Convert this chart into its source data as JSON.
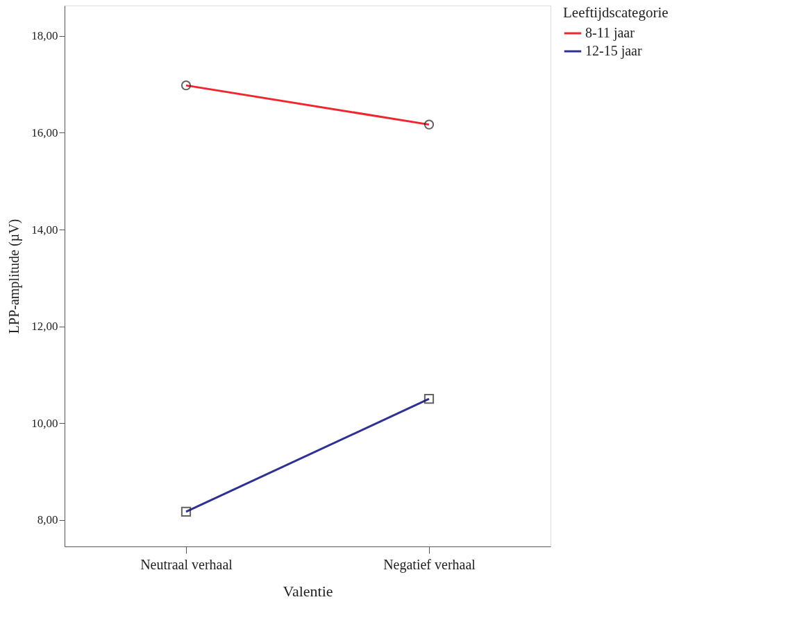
{
  "chart_data": {
    "type": "line",
    "xlabel": "Valentie",
    "ylabel": "LPP-amplitude (µV)",
    "legend_title": "Leeftijdscategorie",
    "categories": [
      "Neutraal verhaal",
      "Negatief verhaal"
    ],
    "series": [
      {
        "name": "8-11 jaar",
        "color": "#f0262e",
        "marker": "circle",
        "values": [
          16.98,
          16.17
        ]
      },
      {
        "name": "12-15 jaar",
        "color": "#2e3192",
        "marker": "square",
        "values": [
          8.17,
          10.5
        ]
      }
    ],
    "ylim": [
      7.45,
      18.63
    ],
    "yticks": [
      {
        "value": 8,
        "label": "8,00"
      },
      {
        "value": 10,
        "label": "10,00"
      },
      {
        "value": 12,
        "label": "12,00"
      },
      {
        "value": 14,
        "label": "14,00"
      },
      {
        "value": 16,
        "label": "16,00"
      },
      {
        "value": 18,
        "label": "18,00"
      }
    ],
    "grid": false,
    "legend": "top right",
    "line_style": "solid"
  }
}
